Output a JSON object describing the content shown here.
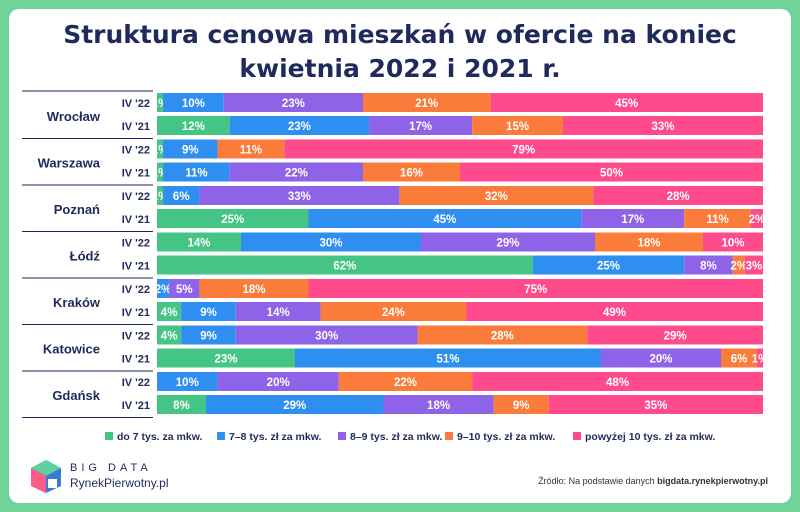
{
  "title_line1": "Struktura cenowa mieszkań w ofercie na koniec",
  "title_line2": "kwietnia 2022 i 2021 r.",
  "logo": {
    "line1": "BIG DATA",
    "line2": "RynekPierwotny.pl"
  },
  "source": {
    "prefix": "Źródło: Na podstawie danych ",
    "site": "bigdata.rynekpierwotny.pl"
  },
  "colors": [
    "#44c485",
    "#2e8ff0",
    "#8f63e8",
    "#fb7b3a",
    "#ff4b8c"
  ],
  "chart_data": {
    "type": "bar",
    "orientation": "horizontal",
    "stacked": true,
    "categories_label": [
      "do 7 tys. za mkw.",
      "7–8 tys. zł za mkw.",
      "8–9 tys. zł za mkw.",
      "9–10 tys. zł za mkw.",
      "powyżej 10 tys. zł za mkw."
    ],
    "groups": [
      {
        "city": "Wrocław",
        "rows": [
          {
            "label": "IV '22",
            "values": [
              1,
              10,
              23,
              21,
              45
            ]
          },
          {
            "label": "IV '21",
            "values": [
              12,
              23,
              17,
              15,
              33
            ]
          }
        ]
      },
      {
        "city": "Warszawa",
        "rows": [
          {
            "label": "IV '22",
            "values": [
              1,
              9,
              0,
              11,
              79
            ]
          },
          {
            "label": "IV '21",
            "values": [
              1,
              11,
              22,
              16,
              50
            ]
          }
        ]
      },
      {
        "city": "Poznań",
        "rows": [
          {
            "label": "IV '22",
            "values": [
              1,
              6,
              33,
              32,
              28
            ]
          },
          {
            "label": "IV '21",
            "values": [
              25,
              45,
              17,
              11,
              2
            ]
          }
        ]
      },
      {
        "city": "Łódź",
        "rows": [
          {
            "label": "IV '22",
            "values": [
              14,
              30,
              29,
              18,
              10
            ]
          },
          {
            "label": "IV '21",
            "values": [
              62,
              25,
              8,
              2,
              3
            ]
          }
        ]
      },
      {
        "city": "Kraków",
        "rows": [
          {
            "label": "IV '22",
            "values": [
              0,
              2,
              5,
              18,
              75
            ]
          },
          {
            "label": "IV '21",
            "values": [
              4,
              9,
              14,
              24,
              49
            ]
          }
        ]
      },
      {
        "city": "Katowice",
        "rows": [
          {
            "label": "IV '22",
            "values": [
              4,
              9,
              30,
              28,
              29
            ]
          },
          {
            "label": "IV '21",
            "values": [
              23,
              51,
              20,
              6,
              1
            ]
          }
        ]
      },
      {
        "city": "Gdańsk",
        "rows": [
          {
            "label": "IV '22",
            "values": [
              0,
              10,
              20,
              22,
              48
            ]
          },
          {
            "label": "IV '21",
            "values": [
              8,
              29,
              18,
              9,
              35
            ]
          }
        ]
      }
    ],
    "legend_position": "bottom",
    "xlim": [
      0,
      100
    ],
    "value_suffix": "%"
  }
}
